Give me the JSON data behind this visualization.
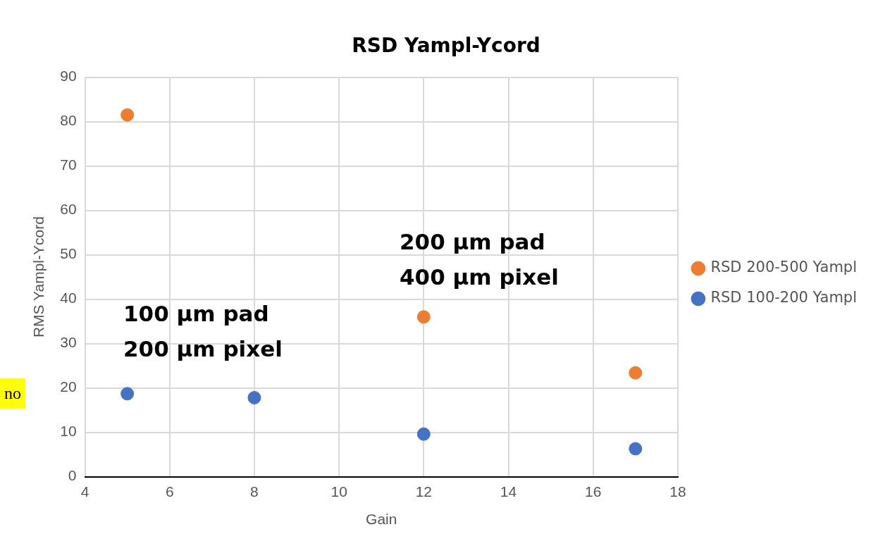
{
  "chart_data": {
    "type": "scatter",
    "title": "RSD Yampl-Ycord",
    "xlabel": "Gain",
    "ylabel": "RMS Yampl-Ycord",
    "series": [
      {
        "name": "RSD 200-500 Yampl",
        "color": "#ed7d31",
        "x": [
          5,
          12,
          17
        ],
        "values": [
          81.5,
          36,
          23.4
        ]
      },
      {
        "name": "RSD 100-200 Yampl",
        "color": "#4472c4",
        "x": [
          5,
          8,
          12,
          17
        ],
        "values": [
          18.7,
          17.8,
          9.6,
          6.3
        ]
      }
    ],
    "xlim": [
      4,
      18
    ],
    "xticks": [
      4,
      6,
      8,
      10,
      12,
      14,
      16,
      18
    ],
    "ylim": [
      0,
      90
    ],
    "yticks": [
      0,
      10,
      20,
      30,
      40,
      50,
      60,
      70,
      80,
      90
    ],
    "grid": true,
    "legend": "right",
    "marker": "circle",
    "annotations": [
      "100 µm pad\n200 µm pixel",
      "200 µm pad\n400 µm pixel",
      "no"
    ]
  }
}
